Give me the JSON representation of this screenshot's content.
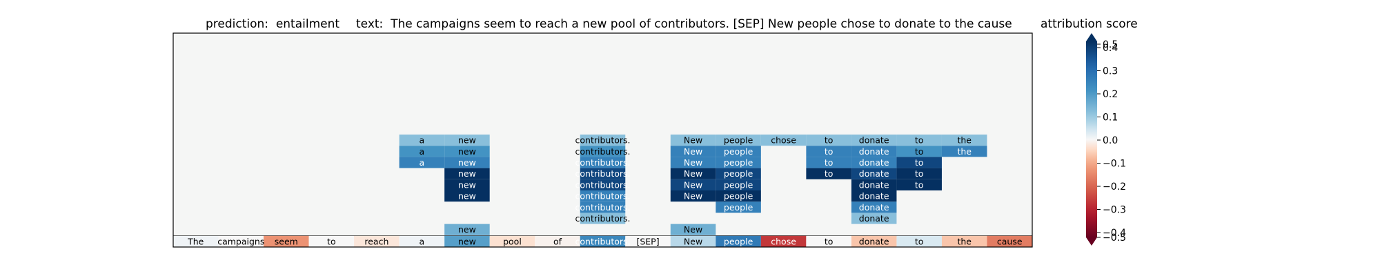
{
  "chart_data": {
    "type": "heatmap",
    "header": {
      "prediction_label": "prediction:",
      "prediction_value": "entailment",
      "text_label": "text:",
      "text_value": "The campaigns seem to reach a new pool of contributors. [SEP] New people chose to donate to the cause"
    },
    "tokens": [
      "The",
      "campaigns",
      "seem",
      "to",
      "reach",
      "a",
      "new",
      "pool",
      "of",
      "contributors.",
      "[SEP]",
      "New",
      "people",
      "chose",
      "to",
      "donate",
      "to",
      "the",
      "cause"
    ],
    "token_scores": [
      0.01,
      0.0,
      -0.16,
      0.0,
      -0.03,
      0.01,
      0.22,
      -0.04,
      -0.01,
      0.28,
      0.0,
      0.08,
      0.32,
      -0.32,
      0.0,
      -0.08,
      0.04,
      -0.08,
      -0.2
    ],
    "layers": [
      {
        "cells": [
          {
            "col": 6,
            "score": 0.18
          },
          {
            "col": 11,
            "score": 0.18
          }
        ]
      },
      {
        "cells": [
          {
            "col": 9,
            "score": 0.14
          },
          {
            "col": 15,
            "score": 0.14
          }
        ]
      },
      {
        "cells": [
          {
            "col": 9,
            "score": 0.3
          },
          {
            "col": 12,
            "score": 0.3
          },
          {
            "col": 15,
            "score": 0.3
          }
        ]
      },
      {
        "cells": [
          {
            "col": 6,
            "score": 0.5
          },
          {
            "col": 9,
            "score": 0.3
          },
          {
            "col": 11,
            "score": 0.5
          },
          {
            "col": 12,
            "score": 0.5
          },
          {
            "col": 15,
            "score": 0.5
          }
        ]
      },
      {
        "cells": [
          {
            "col": 6,
            "score": 0.5
          },
          {
            "col": 9,
            "score": 0.45
          },
          {
            "col": 11,
            "score": 0.45
          },
          {
            "col": 12,
            "score": 0.45
          },
          {
            "col": 15,
            "score": 0.5
          },
          {
            "col": 16,
            "score": 0.5
          }
        ]
      },
      {
        "cells": [
          {
            "col": 6,
            "score": 0.5
          },
          {
            "col": 9,
            "score": 0.45
          },
          {
            "col": 11,
            "score": 0.5
          },
          {
            "col": 12,
            "score": 0.45
          },
          {
            "col": 14,
            "score": 0.5
          },
          {
            "col": 15,
            "score": 0.45
          },
          {
            "col": 16,
            "score": 0.5
          }
        ]
      },
      {
        "cells": [
          {
            "col": 5,
            "score": 0.3
          },
          {
            "col": 6,
            "score": 0.3
          },
          {
            "col": 9,
            "score": 0.3
          },
          {
            "col": 11,
            "score": 0.3
          },
          {
            "col": 12,
            "score": 0.3
          },
          {
            "col": 14,
            "score": 0.3
          },
          {
            "col": 15,
            "score": 0.3
          },
          {
            "col": 16,
            "score": 0.45
          }
        ]
      },
      {
        "cells": [
          {
            "col": 5,
            "score": 0.25
          },
          {
            "col": 6,
            "score": 0.25
          },
          {
            "col": 9,
            "score": 0.25
          },
          {
            "col": 11,
            "score": 0.3
          },
          {
            "col": 12,
            "score": 0.3
          },
          {
            "col": 14,
            "score": 0.3
          },
          {
            "col": 15,
            "score": 0.3
          },
          {
            "col": 16,
            "score": 0.25
          },
          {
            "col": 17,
            "score": 0.3
          }
        ]
      },
      {
        "cells": [
          {
            "col": 5,
            "score": 0.14
          },
          {
            "col": 6,
            "score": 0.14
          },
          {
            "col": 9,
            "score": 0.14
          },
          {
            "col": 11,
            "score": 0.14
          },
          {
            "col": 12,
            "score": 0.14
          },
          {
            "col": 13,
            "score": 0.14
          },
          {
            "col": 14,
            "score": 0.14
          },
          {
            "col": 15,
            "score": 0.14
          },
          {
            "col": 16,
            "score": 0.14
          },
          {
            "col": 17,
            "score": 0.14
          }
        ]
      }
    ],
    "colorbar": {
      "title": "attribution score",
      "ticks": [
        0.5,
        0.4,
        0.3,
        0.2,
        0.1,
        0.0,
        -0.1,
        -0.2,
        -0.3,
        -0.4,
        -0.5
      ],
      "tick_labels": [
        "0.5",
        "0.4",
        "0.3",
        "0.2",
        "0.1",
        "0.0",
        "−0.1",
        "−0.2",
        "−0.3",
        "−0.4",
        "−0.5"
      ],
      "range": [
        -0.5,
        0.5
      ],
      "colormap": "RdBu"
    },
    "colors": {
      "background": "#f5f6f5",
      "frame": "#000000"
    }
  }
}
